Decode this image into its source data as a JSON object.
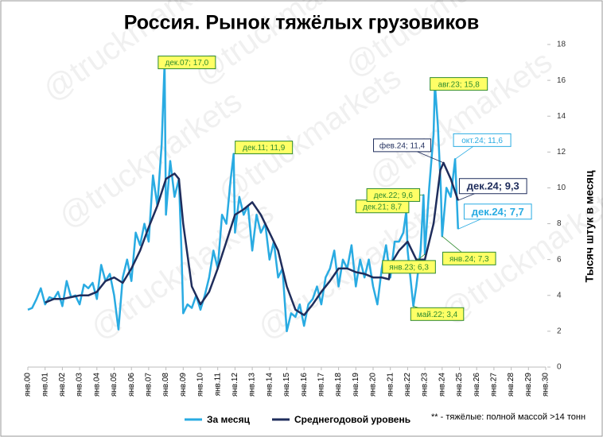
{
  "chart_data": {
    "type": "line",
    "title": "Россия. Рынок тяжёлых грузовиков",
    "y_label": "Тысяч штук в месяц",
    "footnote": "** - тяжёлые: полной массой >14 тонн",
    "watermark": "@truckmarkets",
    "xlim": [
      2000,
      2030
    ],
    "xticks": [
      {
        "value": 2000,
        "label": "янв.00"
      },
      {
        "value": 2001,
        "label": "янв.01"
      },
      {
        "value": 2002,
        "label": "янв.02"
      },
      {
        "value": 2003,
        "label": "янв.03"
      },
      {
        "value": 2004,
        "label": "янв.04"
      },
      {
        "value": 2005,
        "label": "янв.05"
      },
      {
        "value": 2006,
        "label": "янв.06"
      },
      {
        "value": 2007,
        "label": "янв.07"
      },
      {
        "value": 2008,
        "label": "янв.08"
      },
      {
        "value": 2009,
        "label": "янв.09"
      },
      {
        "value": 2010,
        "label": "янв.10"
      },
      {
        "value": 2011,
        "label": "янв.11"
      },
      {
        "value": 2012,
        "label": "янв.12"
      },
      {
        "value": 2013,
        "label": "янв.13"
      },
      {
        "value": 2014,
        "label": "янв.14"
      },
      {
        "value": 2015,
        "label": "янв.15"
      },
      {
        "value": 2016,
        "label": "янв.16"
      },
      {
        "value": 2017,
        "label": "янв.17"
      },
      {
        "value": 2018,
        "label": "янв.18"
      },
      {
        "value": 2019,
        "label": "янв.19"
      },
      {
        "value": 2020,
        "label": "янв.20"
      },
      {
        "value": 2021,
        "label": "янв.21"
      },
      {
        "value": 2022,
        "label": "янв.22"
      },
      {
        "value": 2023,
        "label": "янв.23"
      },
      {
        "value": 2024,
        "label": "янв.24"
      },
      {
        "value": 2025,
        "label": "янв.25"
      },
      {
        "value": 2026,
        "label": "янв.26"
      },
      {
        "value": 2027,
        "label": "янв.27"
      },
      {
        "value": 2028,
        "label": "янв.28"
      },
      {
        "value": 2029,
        "label": "янв.29"
      },
      {
        "value": 2030,
        "label": "янв.30"
      }
    ],
    "ylim": [
      0,
      18
    ],
    "yticks": [
      0,
      2,
      4,
      6,
      8,
      10,
      12,
      14,
      16,
      18
    ],
    "series": [
      {
        "name": "За месяц",
        "color": "#29abe2",
        "width": 2.5,
        "x": [
          2000.0,
          2000.25,
          2000.5,
          2000.75,
          2001.0,
          2001.25,
          2001.5,
          2001.75,
          2002.0,
          2002.25,
          2002.5,
          2002.75,
          2003.0,
          2003.25,
          2003.5,
          2003.75,
          2004.0,
          2004.25,
          2004.5,
          2004.75,
          2005.0,
          2005.25,
          2005.5,
          2005.75,
          2006.0,
          2006.25,
          2006.5,
          2006.75,
          2007.0,
          2007.25,
          2007.5,
          2007.75,
          2007.92,
          2008.0,
          2008.25,
          2008.5,
          2008.75,
          2008.9,
          2009.0,
          2009.25,
          2009.5,
          2009.75,
          2010.0,
          2010.25,
          2010.5,
          2010.75,
          2011.0,
          2011.25,
          2011.5,
          2011.75,
          2011.92,
          2012.0,
          2012.25,
          2012.5,
          2012.75,
          2013.0,
          2013.25,
          2013.5,
          2013.75,
          2014.0,
          2014.25,
          2014.5,
          2014.75,
          2015.0,
          2015.25,
          2015.5,
          2015.75,
          2016.0,
          2016.25,
          2016.5,
          2016.75,
          2017.0,
          2017.25,
          2017.5,
          2017.75,
          2018.0,
          2018.25,
          2018.5,
          2018.75,
          2019.0,
          2019.25,
          2019.5,
          2019.75,
          2020.0,
          2020.25,
          2020.5,
          2020.75,
          2021.0,
          2021.25,
          2021.5,
          2021.75,
          2021.92,
          2022.0,
          2022.33,
          2022.5,
          2022.75,
          2022.92,
          2023.0,
          2023.25,
          2023.5,
          2023.58,
          2023.75,
          2023.92,
          2024.0,
          2024.25,
          2024.5,
          2024.75,
          2024.92
        ],
        "values": [
          3.2,
          3.3,
          3.8,
          4.4,
          3.5,
          3.9,
          3.8,
          4.2,
          3.4,
          4.8,
          3.9,
          4.0,
          3.5,
          4.6,
          4.4,
          4.7,
          3.8,
          5.7,
          4.8,
          5.2,
          4.0,
          2.1,
          5.0,
          6.0,
          4.8,
          7.5,
          6.8,
          8.0,
          7.0,
          10.7,
          9.0,
          12.4,
          17.0,
          8.5,
          11.5,
          9.5,
          10.5,
          6.5,
          3.0,
          3.5,
          3.3,
          4.0,
          3.2,
          4.0,
          5.0,
          6.5,
          5.5,
          8.5,
          8.0,
          10.5,
          11.9,
          7.5,
          9.5,
          8.5,
          9.0,
          6.5,
          8.5,
          7.5,
          8.0,
          6.0,
          7.0,
          5.0,
          5.5,
          2.0,
          3.0,
          2.8,
          3.5,
          2.3,
          3.5,
          3.8,
          4.5,
          3.5,
          5.0,
          5.5,
          6.5,
          4.5,
          6.0,
          5.5,
          6.8,
          4.5,
          6.0,
          5.0,
          6.0,
          4.5,
          3.5,
          5.5,
          6.8,
          5.0,
          7.0,
          7.0,
          7.5,
          8.7,
          6.5,
          3.4,
          4.5,
          6.5,
          9.6,
          6.3,
          10.0,
          13.0,
          15.8,
          13.5,
          10.0,
          7.3,
          10.0,
          9.5,
          11.6,
          7.7
        ]
      },
      {
        "name": "Среднегодовой уровень",
        "color": "#1f2d5c",
        "width": 2.5,
        "x": [
          2001.0,
          2001.5,
          2002.0,
          2002.5,
          2003.0,
          2003.5,
          2004.0,
          2004.5,
          2005.0,
          2005.5,
          2006.0,
          2006.5,
          2007.0,
          2007.5,
          2008.0,
          2008.5,
          2008.75,
          2009.0,
          2009.5,
          2010.0,
          2010.5,
          2011.0,
          2011.5,
          2012.0,
          2012.5,
          2013.0,
          2013.5,
          2014.0,
          2014.5,
          2015.0,
          2015.5,
          2016.0,
          2016.5,
          2017.0,
          2017.5,
          2018.0,
          2018.5,
          2019.0,
          2019.5,
          2020.0,
          2020.5,
          2020.92,
          2021.0,
          2021.5,
          2022.0,
          2022.5,
          2023.0,
          2023.5,
          2023.9,
          2024.08,
          2024.5,
          2024.92
        ],
        "values": [
          3.6,
          3.8,
          3.8,
          3.9,
          4.0,
          4.0,
          4.2,
          4.8,
          5.0,
          4.7,
          5.5,
          6.5,
          7.8,
          9.0,
          10.5,
          10.8,
          10.5,
          8.0,
          4.5,
          3.5,
          4.2,
          5.5,
          7.0,
          8.5,
          8.8,
          9.2,
          8.5,
          7.5,
          6.5,
          4.5,
          3.2,
          2.9,
          3.5,
          4.2,
          4.8,
          5.5,
          5.5,
          5.3,
          5.2,
          5.0,
          5.0,
          4.9,
          5.7,
          6.5,
          7.0,
          6.0,
          6.0,
          8.0,
          11.0,
          11.4,
          10.5,
          9.3
        ]
      }
    ],
    "annotations": [
      {
        "text": "дек.07; 17,0",
        "x": 2007.92,
        "y": 17.0,
        "fill": "#ffff66",
        "color": "#2e8b2e"
      },
      {
        "text": "дек.11; 11,9",
        "x": 2011.92,
        "y": 11.9,
        "fill": "#ffff66",
        "color": "#2e8b2e"
      },
      {
        "text": "дек.21; 8,7",
        "x": 2021.92,
        "y": 8.7,
        "fill": "#ffff66",
        "color": "#2e8b2e"
      },
      {
        "text": "дек.22; 9,6",
        "x": 2022.92,
        "y": 9.6,
        "fill": "#ffff66",
        "color": "#2e8b2e"
      },
      {
        "text": "янв.23; 6,3",
        "x": 2023.0,
        "y": 6.3,
        "fill": "#ffff66",
        "color": "#2e8b2e"
      },
      {
        "text": "май.22; 3,4",
        "x": 2022.33,
        "y": 3.4,
        "fill": "#ffff66",
        "color": "#2e8b2e"
      },
      {
        "text": "авг.23; 15,8",
        "x": 2023.58,
        "y": 15.8,
        "fill": "#ffff66",
        "color": "#2e8b2e"
      },
      {
        "text": "янв.24; 7,3",
        "x": 2024.0,
        "y": 7.3,
        "fill": "#ffff66",
        "color": "#2e8b2e"
      },
      {
        "text": "окт.24; 11,6",
        "x": 2024.75,
        "y": 11.6,
        "fill": "#ffffff",
        "color": "#29abe2"
      },
      {
        "text": "фев.24; 11,4",
        "x": 2024.08,
        "y": 11.4,
        "fill": "#ffffff",
        "color": "#1f2d5c"
      },
      {
        "text": "дек.24; 9,3",
        "x": 2024.92,
        "y": 9.3,
        "fill": "#ffffff",
        "color": "#1f2d5c"
      },
      {
        "text": "дек.24; 7,7",
        "x": 2024.92,
        "y": 7.7,
        "fill": "#ffffff",
        "color": "#29abe2"
      }
    ]
  }
}
